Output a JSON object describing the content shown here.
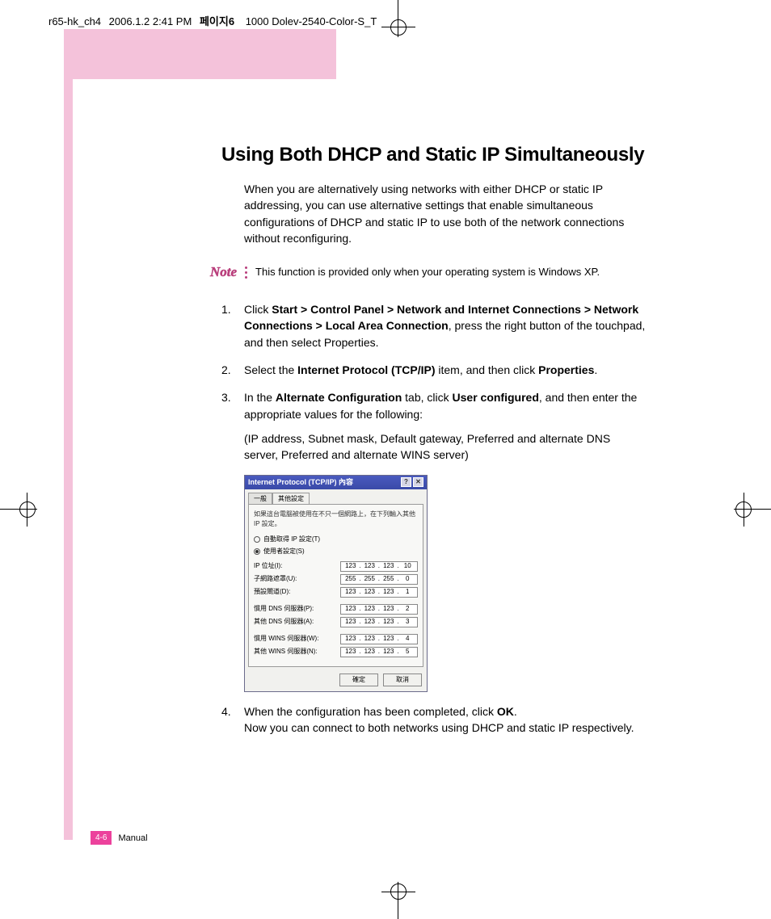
{
  "header": {
    "file": "r65-hk_ch4",
    "date": "2006.1.2 2:41 PM",
    "page_label": "페이지6",
    "printer": "1000 Dolev-2540-Color-S_T"
  },
  "title": "Using Both DHCP and Static IP Simultaneously",
  "intro": "When you are alternatively using networks with either DHCP or static IP addressing, you can use alternative settings that enable simultaneous configurations of DHCP and static IP to use both of the network connections without reconfiguring.",
  "note": {
    "label": "Note",
    "text": "This function is provided only when your operating system is Windows XP."
  },
  "steps": {
    "s1_a": "Click ",
    "s1_b": "Start > Control Panel > Network and Internet Connections > Network Connections > Local Area Connection",
    "s1_c": ", press the right button of the touchpad, and then select Properties.",
    "s2_a": "Select the ",
    "s2_b": "Internet Protocol (TCP/IP)",
    "s2_c": " item, and then click ",
    "s2_d": "Properties",
    "s2_e": ".",
    "s3_a": "In the ",
    "s3_b": "Alternate Configuration",
    "s3_c": " tab, click ",
    "s3_d": "User configured",
    "s3_e": ", and then enter the appropriate values for the following:",
    "s3_sub": "(IP address, Subnet mask, Default gateway, Preferred and alternate DNS server, Preferred and alternate WINS server)",
    "s4_a": "When the configuration has been completed, click ",
    "s4_b": "OK",
    "s4_c": ".",
    "s4_sub": "Now you can connect to both networks using DHCP and static IP respectively."
  },
  "dialog": {
    "title": "Internet Protocol (TCP/IP) 內容",
    "help": "?",
    "close": "✕",
    "tab1": "一般",
    "tab2": "其他設定",
    "desc": "如果這台電腦被使用在不只一個網路上，在下列輸入其他 IP 設定。",
    "radio1": "自動取得 IP 設定(T)",
    "radio2": "使用者設定(S)",
    "rows": [
      {
        "label": "IP 位址(I):",
        "ip": [
          "123",
          "123",
          "123",
          "10"
        ]
      },
      {
        "label": "子網路遮罩(U):",
        "ip": [
          "255",
          "255",
          "255",
          "0"
        ]
      },
      {
        "label": "預設閘道(D):",
        "ip": [
          "123",
          "123",
          "123",
          "1"
        ]
      },
      {
        "label": "慣用 DNS 伺服器(P):",
        "ip": [
          "123",
          "123",
          "123",
          "2"
        ],
        "gap": true
      },
      {
        "label": "其他 DNS 伺服器(A):",
        "ip": [
          "123",
          "123",
          "123",
          "3"
        ]
      },
      {
        "label": "慣用 WINS 伺服器(W):",
        "ip": [
          "123",
          "123",
          "123",
          "4"
        ],
        "gap": true
      },
      {
        "label": "其他 WINS 伺服器(N):",
        "ip": [
          "123",
          "123",
          "123",
          "5"
        ]
      }
    ],
    "ok": "確定",
    "cancel": "取消"
  },
  "footer": {
    "page": "4-6",
    "label": "Manual"
  },
  "colors": {
    "pink": "#f4c2da",
    "magenta": "#ec419c",
    "note": "#b93f7c"
  }
}
